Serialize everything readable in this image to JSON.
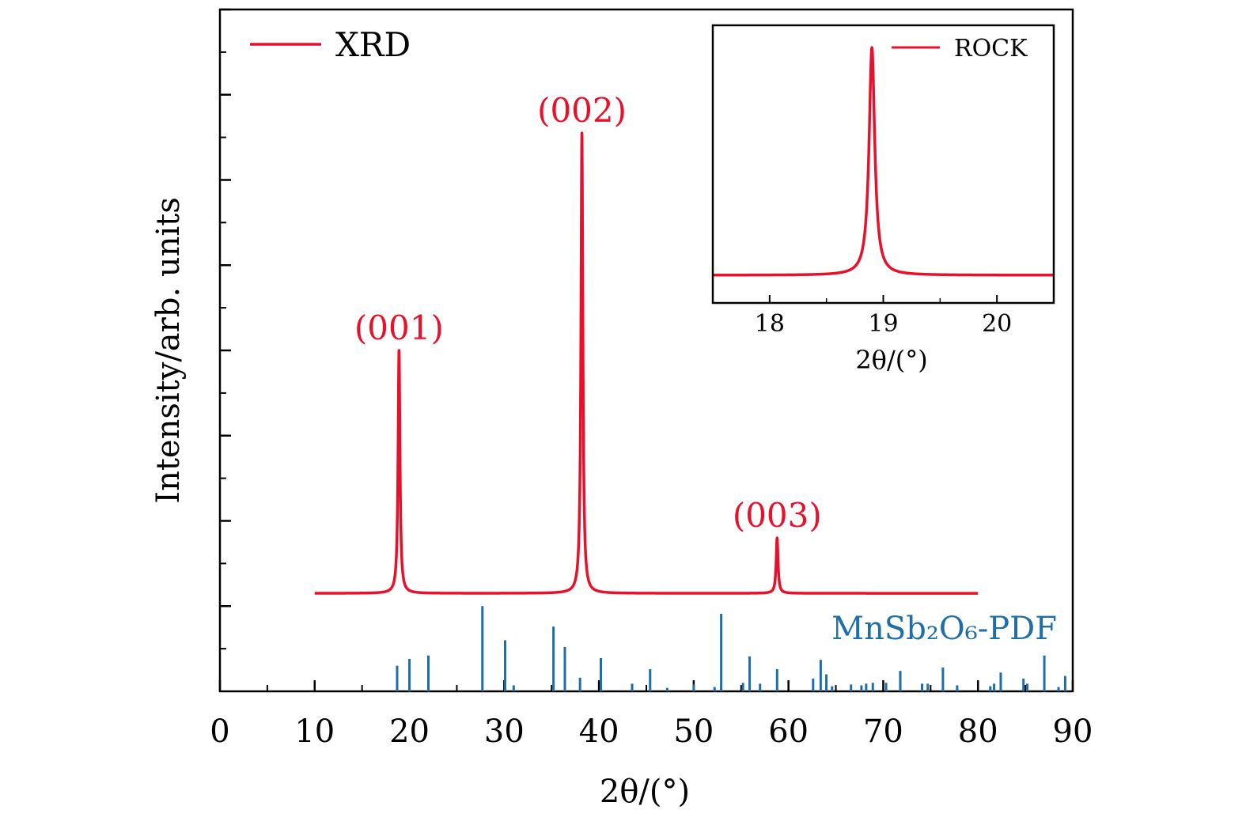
{
  "chart_data": [
    {
      "type": "line",
      "xlabel": "2θ/(°)",
      "ylabel": "Intensity/arb. units",
      "xlim": [
        0,
        90
      ],
      "ylim": [
        0,
        8
      ],
      "x_ticks": [
        "0",
        "10",
        "20",
        "30",
        "40",
        "50",
        "60",
        "70",
        "80",
        "90"
      ],
      "y_tick_labels_shown": false,
      "legend": {
        "position": "top-left",
        "entries": [
          "XRD"
        ]
      },
      "series": [
        {
          "name": "XRD",
          "color": "#e8102a",
          "baseline": 1.15,
          "x_start": 10,
          "x_end": 80,
          "peaks": [
            {
              "x": 18.9,
              "height": 4.0,
              "label": "(001)"
            },
            {
              "x": 38.2,
              "height": 6.55,
              "label": "(002)"
            },
            {
              "x": 58.8,
              "height": 1.8,
              "label": "(003)"
            }
          ]
        },
        {
          "name": "MnSb₂O₆-PDF",
          "type": "stick",
          "color": "#1e6ea7",
          "sticks": [
            {
              "x": 18.7,
              "y": 0.3
            },
            {
              "x": 20.0,
              "y": 0.38
            },
            {
              "x": 22.0,
              "y": 0.42
            },
            {
              "x": 27.7,
              "y": 1.0
            },
            {
              "x": 30.1,
              "y": 0.6
            },
            {
              "x": 31.0,
              "y": 0.07
            },
            {
              "x": 35.2,
              "y": 0.76
            },
            {
              "x": 36.4,
              "y": 0.52
            },
            {
              "x": 38.0,
              "y": 0.16
            },
            {
              "x": 40.2,
              "y": 0.39
            },
            {
              "x": 43.5,
              "y": 0.09
            },
            {
              "x": 45.4,
              "y": 0.26
            },
            {
              "x": 47.2,
              "y": 0.04
            },
            {
              "x": 50.0,
              "y": 0.08
            },
            {
              "x": 52.2,
              "y": 0.05
            },
            {
              "x": 52.9,
              "y": 0.91
            },
            {
              "x": 55.2,
              "y": 0.1
            },
            {
              "x": 55.9,
              "y": 0.41
            },
            {
              "x": 57.0,
              "y": 0.09
            },
            {
              "x": 58.8,
              "y": 0.26
            },
            {
              "x": 62.6,
              "y": 0.15
            },
            {
              "x": 63.4,
              "y": 0.37
            },
            {
              "x": 64.0,
              "y": 0.2
            },
            {
              "x": 64.6,
              "y": 0.06
            },
            {
              "x": 66.6,
              "y": 0.08
            },
            {
              "x": 67.7,
              "y": 0.07
            },
            {
              "x": 68.2,
              "y": 0.09
            },
            {
              "x": 68.9,
              "y": 0.1
            },
            {
              "x": 70.3,
              "y": 0.1
            },
            {
              "x": 71.8,
              "y": 0.24
            },
            {
              "x": 74.1,
              "y": 0.09
            },
            {
              "x": 74.7,
              "y": 0.09
            },
            {
              "x": 76.3,
              "y": 0.28
            },
            {
              "x": 77.8,
              "y": 0.07
            },
            {
              "x": 81.3,
              "y": 0.06
            },
            {
              "x": 81.7,
              "y": 0.09
            },
            {
              "x": 82.4,
              "y": 0.22
            },
            {
              "x": 84.8,
              "y": 0.15
            },
            {
              "x": 85.2,
              "y": 0.09
            },
            {
              "x": 87.0,
              "y": 0.42
            },
            {
              "x": 88.5,
              "y": 0.05
            },
            {
              "x": 89.2,
              "y": 0.18
            }
          ]
        }
      ],
      "annotations": [
        "MnSb₂O₆-PDF"
      ]
    },
    {
      "type": "line",
      "role": "inset",
      "xlabel": "2θ/(°)",
      "xlim": [
        17.5,
        20.5
      ],
      "ylim": [
        0,
        1
      ],
      "x_ticks": [
        "18",
        "19",
        "20"
      ],
      "legend": {
        "position": "top-right",
        "entries": [
          "ROCK"
        ]
      },
      "series": [
        {
          "name": "ROCK",
          "color": "#e8102a",
          "baseline": 0.1,
          "peak": {
            "x": 18.9,
            "height": 0.92
          }
        }
      ]
    }
  ]
}
